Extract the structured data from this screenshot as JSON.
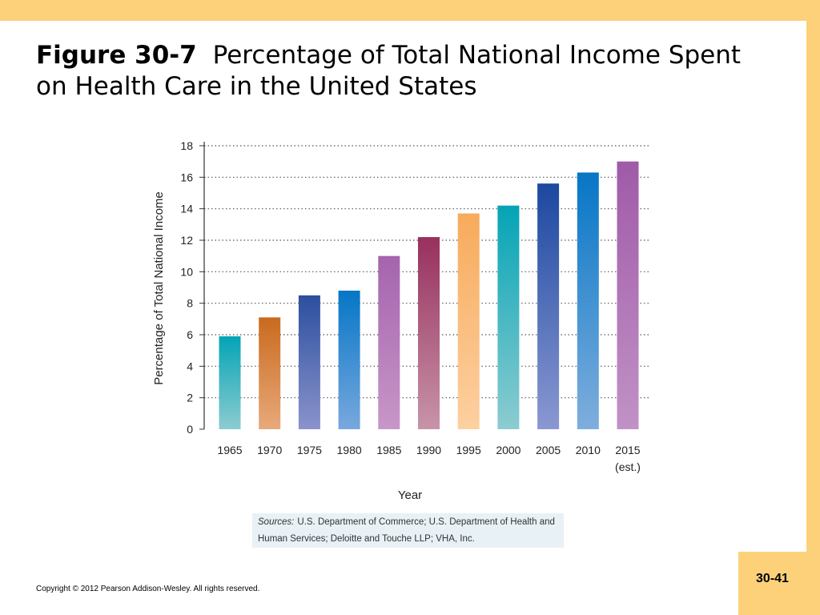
{
  "slide": {
    "figure_label": "Figure 30-7",
    "title": "Percentage of Total National Income Spent on Health Care in the United States",
    "page_number": "30-41",
    "copyright": "Copyright © 2012 Pearson Addison-Wesley. All rights reserved.",
    "sources_label": "Sources:",
    "sources_text": "U.S. Department of Commerce; U.S. Department of Health and Human Services; Deloitte and Touche LLP; VHA, Inc."
  },
  "colors": {
    "background_accent": "#fcd17a",
    "sources_box": "#e8f1f6"
  },
  "chart_data": {
    "type": "bar",
    "title": "",
    "xlabel": "Year",
    "ylabel": "Percentage of Total National Income",
    "ylim": [
      0,
      18
    ],
    "yticks": [
      0,
      2,
      4,
      6,
      8,
      10,
      12,
      14,
      16,
      18
    ],
    "grid": "horizontal dotted",
    "categories": [
      "1965",
      "1970",
      "1975",
      "1980",
      "1985",
      "1990",
      "1995",
      "2000",
      "2005",
      "2010",
      "2015"
    ],
    "category_sublabels": [
      "",
      "",
      "",
      "",
      "",
      "",
      "",
      "",
      "",
      "",
      "(est.)"
    ],
    "values": [
      5.9,
      7.1,
      8.5,
      8.8,
      11.0,
      12.2,
      13.7,
      14.2,
      15.6,
      16.3,
      17.0
    ],
    "bar_colors": [
      [
        "#04a4b6",
        "#8cccd0"
      ],
      [
        "#c96a1e",
        "#e8a97a"
      ],
      [
        "#2c4f9e",
        "#8a93cc"
      ],
      [
        "#0676c6",
        "#78a8de"
      ],
      [
        "#a564ae",
        "#c896c8"
      ],
      [
        "#98305e",
        "#c794a8"
      ],
      [
        "#f7ab5c",
        "#fdd0a0"
      ],
      [
        "#04a4b6",
        "#8cccd0"
      ],
      [
        "#1c48a0",
        "#8a98d2"
      ],
      [
        "#0676c6",
        "#7eaedd"
      ],
      [
        "#a05aa8",
        "#c192c6"
      ]
    ]
  }
}
